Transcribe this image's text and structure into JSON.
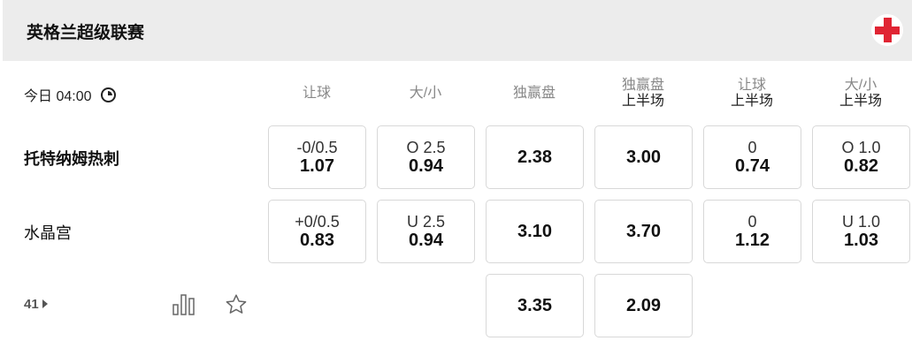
{
  "header": {
    "league": "英格兰超级联赛",
    "flag_icon": "england-flag-icon",
    "flag_color": "#e02433"
  },
  "match": {
    "time": "今日 04:00",
    "more_count": "41"
  },
  "columns": [
    {
      "label": "让球",
      "sub": ""
    },
    {
      "label": "大/小",
      "sub": ""
    },
    {
      "label": "独赢盘",
      "sub": ""
    },
    {
      "label": "独赢盘",
      "sub": "上半场"
    },
    {
      "label": "让球",
      "sub": "上半场"
    },
    {
      "label": "大/小",
      "sub": "上半场"
    }
  ],
  "teams": [
    "托特纳姆热刺",
    "水晶宫"
  ],
  "rows": [
    [
      {
        "line": "-0/0.5",
        "odds": "1.07"
      },
      {
        "line": "O 2.5",
        "odds": "0.94"
      },
      {
        "line": "",
        "odds": "2.38"
      },
      {
        "line": "",
        "odds": "3.00"
      },
      {
        "line": "0",
        "odds": "0.74"
      },
      {
        "line": "O 1.0",
        "odds": "0.82"
      }
    ],
    [
      {
        "line": "+0/0.5",
        "odds": "0.83"
      },
      {
        "line": "U 2.5",
        "odds": "0.94"
      },
      {
        "line": "",
        "odds": "3.10"
      },
      {
        "line": "",
        "odds": "3.70"
      },
      {
        "line": "0",
        "odds": "1.12"
      },
      {
        "line": "U 1.0",
        "odds": "1.03"
      }
    ],
    [
      null,
      null,
      {
        "line": "",
        "odds": "3.35"
      },
      {
        "line": "",
        "odds": "2.09"
      },
      null,
      null
    ]
  ]
}
